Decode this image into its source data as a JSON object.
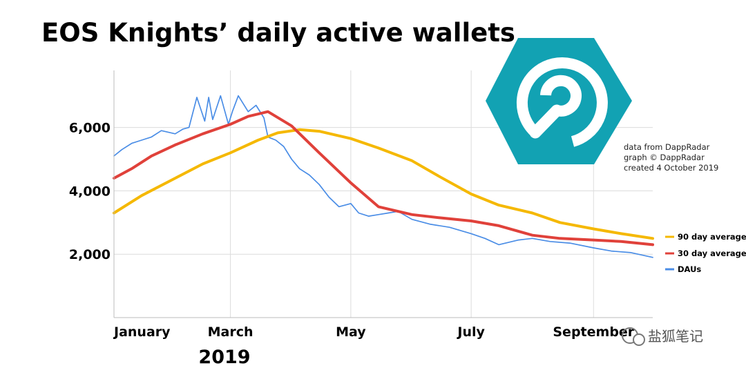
{
  "title": "EOS Knights’ daily active wallets",
  "credits": [
    "data from DappRadar",
    "graph © DappRadar",
    "created 4 October 2019"
  ],
  "watermark": "盐狐笔记",
  "colors": {
    "avg90": "#F5B800",
    "avg30": "#E0413A",
    "daus": "#4A8DE6",
    "logo": "#12A2B3",
    "grid": "#DCDCDC"
  },
  "chart_data": {
    "type": "line",
    "title": "EOS Knights’ daily active wallets",
    "xlabel": "2019",
    "ylabel": "",
    "x_ticks": [
      "January",
      "March",
      "May",
      "July",
      "September"
    ],
    "y_ticks": [
      "2,000",
      "4,000",
      "6,000"
    ],
    "ylim": [
      0,
      7800
    ],
    "grid": true,
    "legend_position": "right",
    "series": [
      {
        "name": "90 day average",
        "color": "#F5B800",
        "x": [
          "2019-01-01",
          "2019-01-15",
          "2019-02-01",
          "2019-02-15",
          "2019-03-01",
          "2019-03-15",
          "2019-03-25",
          "2019-04-05",
          "2019-04-15",
          "2019-05-01",
          "2019-05-15",
          "2019-06-01",
          "2019-06-15",
          "2019-07-01",
          "2019-07-15",
          "2019-08-01",
          "2019-08-15",
          "2019-09-01",
          "2019-09-15",
          "2019-10-01"
        ],
        "values": [
          3300,
          3850,
          4400,
          4850,
          5200,
          5600,
          5830,
          5930,
          5880,
          5650,
          5350,
          4950,
          4450,
          3900,
          3550,
          3300,
          3000,
          2800,
          2650,
          2500
        ]
      },
      {
        "name": "30 day average",
        "color": "#E0413A",
        "x": [
          "2019-01-01",
          "2019-01-10",
          "2019-01-20",
          "2019-02-01",
          "2019-02-15",
          "2019-03-01",
          "2019-03-10",
          "2019-03-20",
          "2019-04-01",
          "2019-04-15",
          "2019-05-01",
          "2019-05-15",
          "2019-06-01",
          "2019-06-15",
          "2019-07-01",
          "2019-07-15",
          "2019-08-01",
          "2019-08-15",
          "2019-09-01",
          "2019-09-15",
          "2019-10-01"
        ],
        "values": [
          4400,
          4700,
          5100,
          5450,
          5800,
          6100,
          6350,
          6500,
          6050,
          5200,
          4250,
          3500,
          3250,
          3150,
          3050,
          2900,
          2600,
          2500,
          2450,
          2400,
          2300
        ]
      },
      {
        "name": "DAUs",
        "color": "#4A8DE6",
        "x": [
          "2019-01-01",
          "2019-01-05",
          "2019-01-10",
          "2019-01-15",
          "2019-01-20",
          "2019-01-25",
          "2019-02-01",
          "2019-02-05",
          "2019-02-08",
          "2019-02-12",
          "2019-02-16",
          "2019-02-18",
          "2019-02-20",
          "2019-02-24",
          "2019-02-28",
          "2019-03-02",
          "2019-03-05",
          "2019-03-10",
          "2019-03-14",
          "2019-03-18",
          "2019-03-20",
          "2019-03-24",
          "2019-03-28",
          "2019-04-01",
          "2019-04-05",
          "2019-04-10",
          "2019-04-15",
          "2019-04-20",
          "2019-04-25",
          "2019-05-01",
          "2019-05-05",
          "2019-05-10",
          "2019-05-15",
          "2019-05-20",
          "2019-05-25",
          "2019-06-01",
          "2019-06-10",
          "2019-06-20",
          "2019-07-01",
          "2019-07-08",
          "2019-07-15",
          "2019-07-25",
          "2019-08-01",
          "2019-08-10",
          "2019-08-20",
          "2019-09-01",
          "2019-09-10",
          "2019-09-20",
          "2019-10-01"
        ],
        "values": [
          5100,
          5300,
          5500,
          5600,
          5700,
          5900,
          5800,
          5950,
          6000,
          6950,
          6200,
          6950,
          6250,
          7000,
          6100,
          6500,
          7000,
          6500,
          6700,
          6300,
          5700,
          5600,
          5400,
          5000,
          4700,
          4500,
          4200,
          3800,
          3500,
          3600,
          3300,
          3200,
          3250,
          3300,
          3350,
          3100,
          2950,
          2850,
          2650,
          2500,
          2300,
          2450,
          2500,
          2400,
          2350,
          2200,
          2100,
          2050,
          1900
        ]
      }
    ]
  }
}
